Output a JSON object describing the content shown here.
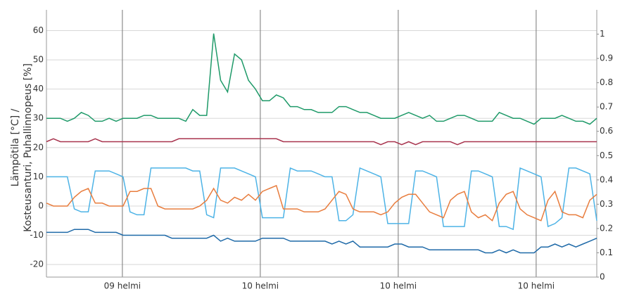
{
  "chart_data": {
    "type": "line",
    "y_label": [
      "Lämpötila [°C] /",
      "Kosteusanturi, Puhallinnopeus [%]"
    ],
    "xlim": [
      0,
      79
    ],
    "xticks": [
      {
        "value": 10.9,
        "label": "09 helmi"
      },
      {
        "value": 30.7,
        "label": "10 helmi"
      },
      {
        "value": 50.5,
        "label": "10 helmi"
      },
      {
        "value": 70.3,
        "label": "10 helmi"
      }
    ],
    "ylim": [
      -24.3,
      67.1
    ],
    "yticks": [
      -20,
      -10,
      0,
      10,
      20,
      30,
      40,
      50,
      60
    ],
    "y2lim": [
      0,
      1.1
    ],
    "y2ticks": [
      0,
      0.1,
      0.2,
      0.3,
      0.4,
      0.5,
      0.6,
      0.7,
      0.8,
      0.9,
      1
    ],
    "grid": true,
    "series": [
      {
        "color": "#1f9a69",
        "values": [
          30,
          30,
          30,
          29,
          30,
          32,
          31,
          29,
          29,
          30,
          29,
          30,
          30,
          30,
          31,
          31,
          30,
          30,
          30,
          30,
          29,
          33,
          31,
          31,
          59,
          43,
          39,
          52,
          50,
          43,
          40,
          36,
          36,
          38,
          37,
          34,
          34,
          33,
          33,
          32,
          32,
          32,
          34,
          34,
          33,
          32,
          32,
          31,
          30,
          30,
          30,
          31,
          32,
          31,
          30,
          31,
          29,
          29,
          30,
          31,
          31,
          30,
          29,
          29,
          29,
          32,
          31,
          30,
          30,
          29,
          28,
          30,
          30,
          30,
          31,
          30,
          29,
          29,
          28,
          30
        ]
      },
      {
        "color": "#a8344e",
        "values": [
          22,
          23,
          22,
          22,
          22,
          22,
          22,
          23,
          22,
          22,
          22,
          22,
          22,
          22,
          22,
          22,
          22,
          22,
          22,
          23,
          23,
          23,
          23,
          23,
          23,
          23,
          23,
          23,
          23,
          23,
          23,
          23,
          23,
          23,
          22,
          22,
          22,
          22,
          22,
          22,
          22,
          22,
          22,
          22,
          22,
          22,
          22,
          22,
          21,
          22,
          22,
          21,
          22,
          21,
          22,
          22,
          22,
          22,
          22,
          21,
          22,
          22,
          22,
          22,
          22,
          22,
          22,
          22,
          22,
          22,
          22,
          22,
          22,
          22,
          22,
          22,
          22,
          22,
          22,
          22
        ]
      },
      {
        "color": "#4db3e6",
        "values": [
          10,
          10,
          10,
          10,
          -1,
          -2,
          -2,
          12,
          12,
          12,
          11,
          10,
          -2,
          -3,
          -3,
          13,
          13,
          13,
          13,
          13,
          13,
          12,
          12,
          -3,
          -4,
          13,
          13,
          13,
          12,
          11,
          10,
          -4,
          -4,
          -4,
          -4,
          13,
          12,
          12,
          12,
          11,
          10,
          10,
          -5,
          -5,
          -3,
          13,
          12,
          11,
          10,
          -6,
          -6,
          -6,
          -6,
          12,
          12,
          11,
          10,
          -7,
          -7,
          -7,
          -7,
          12,
          12,
          11,
          10,
          -7,
          -7,
          -8,
          13,
          12,
          11,
          10,
          -7,
          -6,
          -4,
          13,
          13,
          12,
          11,
          -5
        ]
      },
      {
        "color": "#e87d3e",
        "values": [
          1,
          0,
          0,
          0,
          3,
          5,
          6,
          1,
          1,
          0,
          0,
          0,
          5,
          5,
          6,
          6,
          0,
          -1,
          -1,
          -1,
          -1,
          -1,
          0,
          2,
          6,
          2,
          1,
          3,
          2,
          4,
          2,
          5,
          6,
          7,
          -1,
          -1,
          -1,
          -2,
          -2,
          -2,
          -1,
          2,
          5,
          4,
          -1,
          -2,
          -2,
          -2,
          -3,
          -2,
          1,
          3,
          4,
          4,
          1,
          -2,
          -3,
          -4,
          2,
          4,
          5,
          -2,
          -4,
          -3,
          -5,
          1,
          4,
          5,
          -1,
          -3,
          -4,
          -5,
          2,
          5,
          -2,
          -3,
          -3,
          -4,
          2,
          4
        ]
      },
      {
        "color": "#1f6aa8",
        "values": [
          -9,
          -9,
          -9,
          -9,
          -8,
          -8,
          -8,
          -9,
          -9,
          -9,
          -9,
          -10,
          -10,
          -10,
          -10,
          -10,
          -10,
          -10,
          -11,
          -11,
          -11,
          -11,
          -11,
          -11,
          -10,
          -12,
          -11,
          -12,
          -12,
          -12,
          -12,
          -11,
          -11,
          -11,
          -11,
          -12,
          -12,
          -12,
          -12,
          -12,
          -12,
          -13,
          -12,
          -13,
          -12,
          -14,
          -14,
          -14,
          -14,
          -14,
          -13,
          -13,
          -14,
          -14,
          -14,
          -15,
          -15,
          -15,
          -15,
          -15,
          -15,
          -15,
          -15,
          -16,
          -16,
          -15,
          -16,
          -15,
          -16,
          -16,
          -16,
          -14,
          -14,
          -13,
          -14,
          -13,
          -14,
          -13,
          -12,
          -11
        ]
      }
    ]
  }
}
